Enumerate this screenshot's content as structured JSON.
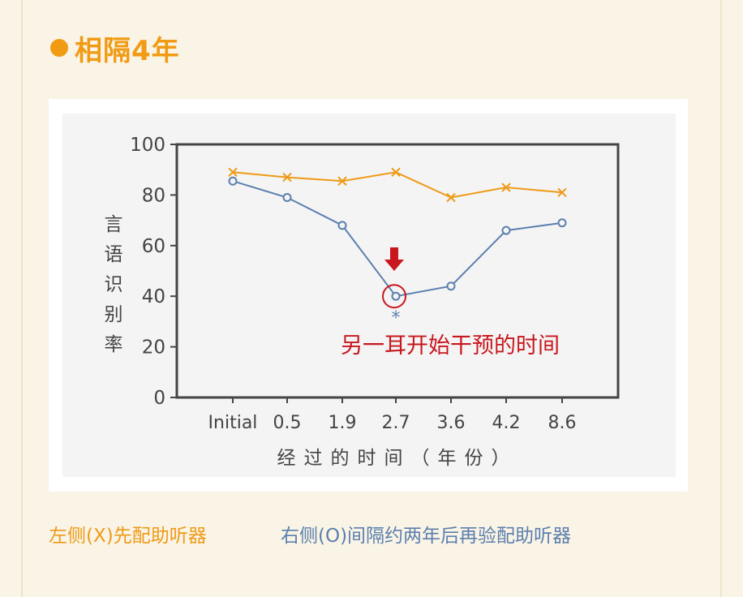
{
  "colors": {
    "accent": "#f19b14",
    "series_left": "#ee9a17",
    "series_right": "#5b7fae",
    "annotation": "#c8171e"
  },
  "heading": {
    "text": "相隔4年"
  },
  "legend": {
    "left": "左侧(X)先配助听器",
    "right": "右侧(O)间隔约两年后再验配助听器"
  },
  "chart_data": {
    "type": "line",
    "categories": [
      "Initial",
      "0.5",
      "1.9",
      "2.7",
      "3.6",
      "4.2",
      "8.6"
    ],
    "xlabel": "经过的时间（年份）",
    "ylabel": "言语识别率",
    "ylim": [
      0,
      100
    ],
    "yticks": [
      "0",
      "20",
      "40",
      "60",
      "80",
      "100"
    ],
    "series": [
      {
        "marker": "x",
        "values": [
          89,
          87,
          85.5,
          89,
          79,
          83,
          81
        ]
      },
      {
        "marker": "o",
        "values": [
          85.5,
          79,
          68,
          40,
          44,
          66,
          69
        ]
      }
    ],
    "annotations": {
      "label": "另一耳开始干预的时间",
      "asterisk": "*",
      "highlight_category": "2.7"
    }
  }
}
